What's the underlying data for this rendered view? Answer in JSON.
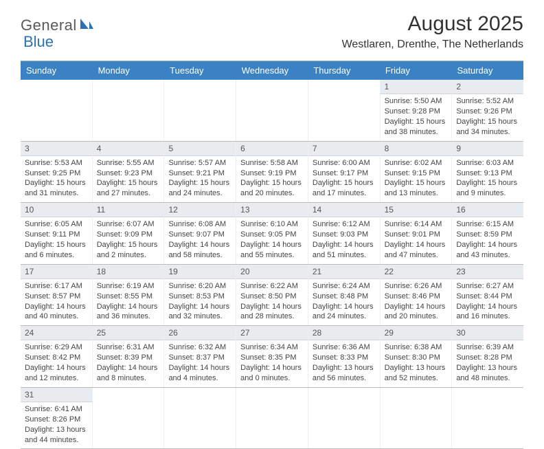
{
  "logo": {
    "general": "General",
    "blue": "Blue",
    "general_color": "#5a5a5a",
    "blue_color": "#2a72b5"
  },
  "title": "August 2025",
  "location": "Westlaren, Drenthe, The Netherlands",
  "colors": {
    "header_bar": "#3b82c4",
    "header_text": "#ffffff",
    "day_band": "#e9ecef",
    "border": "#bbbbbb",
    "cell_border": "#eeeeee",
    "text": "#444444"
  },
  "weekdays": [
    "Sunday",
    "Monday",
    "Tuesday",
    "Wednesday",
    "Thursday",
    "Friday",
    "Saturday"
  ],
  "label_prefixes": {
    "sunrise": "Sunrise: ",
    "sunset": "Sunset: ",
    "daylight": "Daylight: "
  },
  "weeks": [
    [
      {
        "day": "",
        "empty": true
      },
      {
        "day": "",
        "empty": true
      },
      {
        "day": "",
        "empty": true
      },
      {
        "day": "",
        "empty": true
      },
      {
        "day": "",
        "empty": true
      },
      {
        "day": "1",
        "sunrise": "5:50 AM",
        "sunset": "9:28 PM",
        "daylight": "15 hours and 38 minutes."
      },
      {
        "day": "2",
        "sunrise": "5:52 AM",
        "sunset": "9:26 PM",
        "daylight": "15 hours and 34 minutes."
      }
    ],
    [
      {
        "day": "3",
        "sunrise": "5:53 AM",
        "sunset": "9:25 PM",
        "daylight": "15 hours and 31 minutes."
      },
      {
        "day": "4",
        "sunrise": "5:55 AM",
        "sunset": "9:23 PM",
        "daylight": "15 hours and 27 minutes."
      },
      {
        "day": "5",
        "sunrise": "5:57 AM",
        "sunset": "9:21 PM",
        "daylight": "15 hours and 24 minutes."
      },
      {
        "day": "6",
        "sunrise": "5:58 AM",
        "sunset": "9:19 PM",
        "daylight": "15 hours and 20 minutes."
      },
      {
        "day": "7",
        "sunrise": "6:00 AM",
        "sunset": "9:17 PM",
        "daylight": "15 hours and 17 minutes."
      },
      {
        "day": "8",
        "sunrise": "6:02 AM",
        "sunset": "9:15 PM",
        "daylight": "15 hours and 13 minutes."
      },
      {
        "day": "9",
        "sunrise": "6:03 AM",
        "sunset": "9:13 PM",
        "daylight": "15 hours and 9 minutes."
      }
    ],
    [
      {
        "day": "10",
        "sunrise": "6:05 AM",
        "sunset": "9:11 PM",
        "daylight": "15 hours and 6 minutes."
      },
      {
        "day": "11",
        "sunrise": "6:07 AM",
        "sunset": "9:09 PM",
        "daylight": "15 hours and 2 minutes."
      },
      {
        "day": "12",
        "sunrise": "6:08 AM",
        "sunset": "9:07 PM",
        "daylight": "14 hours and 58 minutes."
      },
      {
        "day": "13",
        "sunrise": "6:10 AM",
        "sunset": "9:05 PM",
        "daylight": "14 hours and 55 minutes."
      },
      {
        "day": "14",
        "sunrise": "6:12 AM",
        "sunset": "9:03 PM",
        "daylight": "14 hours and 51 minutes."
      },
      {
        "day": "15",
        "sunrise": "6:14 AM",
        "sunset": "9:01 PM",
        "daylight": "14 hours and 47 minutes."
      },
      {
        "day": "16",
        "sunrise": "6:15 AM",
        "sunset": "8:59 PM",
        "daylight": "14 hours and 43 minutes."
      }
    ],
    [
      {
        "day": "17",
        "sunrise": "6:17 AM",
        "sunset": "8:57 PM",
        "daylight": "14 hours and 40 minutes."
      },
      {
        "day": "18",
        "sunrise": "6:19 AM",
        "sunset": "8:55 PM",
        "daylight": "14 hours and 36 minutes."
      },
      {
        "day": "19",
        "sunrise": "6:20 AM",
        "sunset": "8:53 PM",
        "daylight": "14 hours and 32 minutes."
      },
      {
        "day": "20",
        "sunrise": "6:22 AM",
        "sunset": "8:50 PM",
        "daylight": "14 hours and 28 minutes."
      },
      {
        "day": "21",
        "sunrise": "6:24 AM",
        "sunset": "8:48 PM",
        "daylight": "14 hours and 24 minutes."
      },
      {
        "day": "22",
        "sunrise": "6:26 AM",
        "sunset": "8:46 PM",
        "daylight": "14 hours and 20 minutes."
      },
      {
        "day": "23",
        "sunrise": "6:27 AM",
        "sunset": "8:44 PM",
        "daylight": "14 hours and 16 minutes."
      }
    ],
    [
      {
        "day": "24",
        "sunrise": "6:29 AM",
        "sunset": "8:42 PM",
        "daylight": "14 hours and 12 minutes."
      },
      {
        "day": "25",
        "sunrise": "6:31 AM",
        "sunset": "8:39 PM",
        "daylight": "14 hours and 8 minutes."
      },
      {
        "day": "26",
        "sunrise": "6:32 AM",
        "sunset": "8:37 PM",
        "daylight": "14 hours and 4 minutes."
      },
      {
        "day": "27",
        "sunrise": "6:34 AM",
        "sunset": "8:35 PM",
        "daylight": "14 hours and 0 minutes."
      },
      {
        "day": "28",
        "sunrise": "6:36 AM",
        "sunset": "8:33 PM",
        "daylight": "13 hours and 56 minutes."
      },
      {
        "day": "29",
        "sunrise": "6:38 AM",
        "sunset": "8:30 PM",
        "daylight": "13 hours and 52 minutes."
      },
      {
        "day": "30",
        "sunrise": "6:39 AM",
        "sunset": "8:28 PM",
        "daylight": "13 hours and 48 minutes."
      }
    ],
    [
      {
        "day": "31",
        "sunrise": "6:41 AM",
        "sunset": "8:26 PM",
        "daylight": "13 hours and 44 minutes."
      },
      {
        "day": "",
        "empty": true
      },
      {
        "day": "",
        "empty": true
      },
      {
        "day": "",
        "empty": true
      },
      {
        "day": "",
        "empty": true
      },
      {
        "day": "",
        "empty": true
      },
      {
        "day": "",
        "empty": true
      }
    ]
  ]
}
